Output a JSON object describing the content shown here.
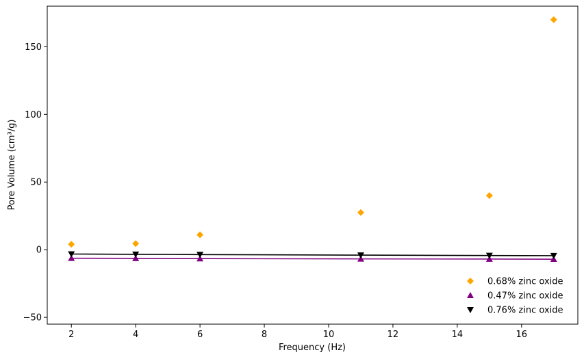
{
  "chart_data": {
    "type": "scatter",
    "title": "",
    "xlabel": "Frequency (Hz)",
    "ylabel": "Pore Volume (cm³/g)",
    "xlim": [
      1.25,
      17.75
    ],
    "ylim": [
      -55,
      180
    ],
    "xticks": [
      2,
      4,
      6,
      8,
      10,
      12,
      14,
      16
    ],
    "yticks": [
      -50,
      0,
      50,
      100,
      150
    ],
    "grid": false,
    "legend_position": "bottom-right",
    "series": [
      {
        "name": "0.68% zinc oxide",
        "marker": "diamond",
        "color": "#FFA500",
        "line": false,
        "x": [
          2,
          4,
          6,
          11,
          15,
          17
        ],
        "y": [
          4,
          4.5,
          11,
          27.5,
          40,
          170
        ]
      },
      {
        "name": "0.47% zinc oxide",
        "marker": "triangle-up",
        "color": "#800080",
        "line": true,
        "x": [
          2,
          4,
          6,
          11,
          15,
          17
        ],
        "y": [
          -6.3,
          -6.4,
          -6.6,
          -6.8,
          -6.9,
          -7.0
        ]
      },
      {
        "name": "0.76% zinc oxide",
        "marker": "triangle-down",
        "color": "#000000",
        "line": true,
        "x": [
          2,
          4,
          6,
          11,
          15,
          17
        ],
        "y": [
          -3.2,
          -3.4,
          -3.6,
          -4.0,
          -4.3,
          -4.4
        ]
      }
    ]
  }
}
